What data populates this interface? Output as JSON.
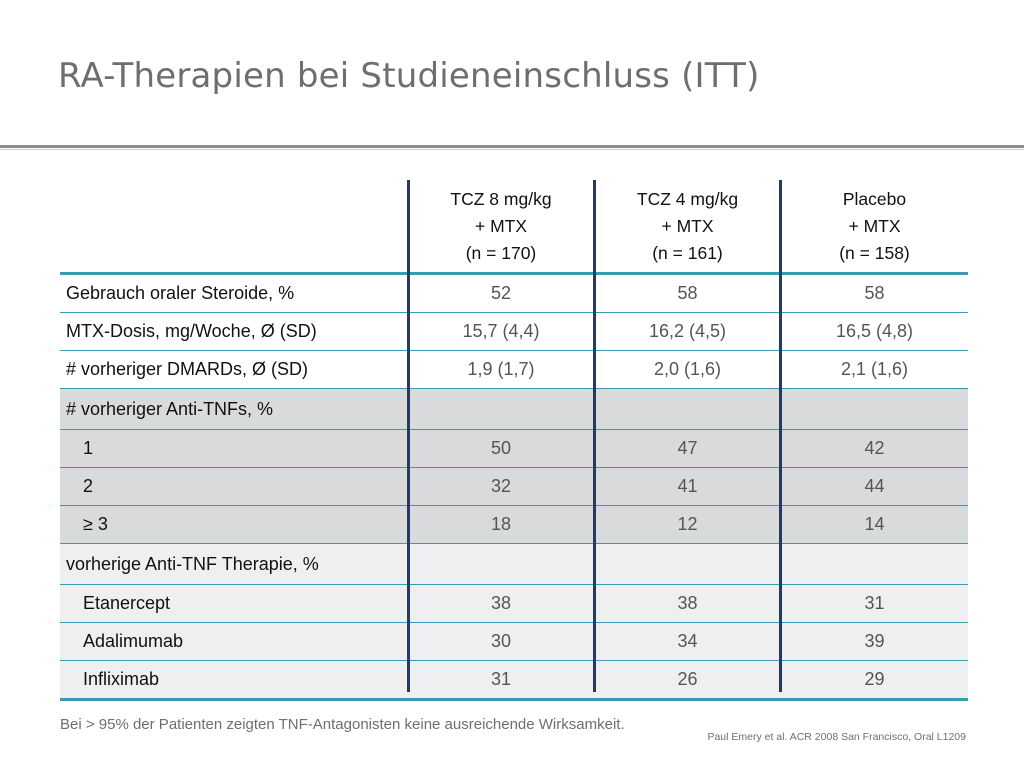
{
  "title": "RA-Therapien bei Studieneinschluss (ITT)",
  "columns": [
    {
      "line1": "TCZ 8 mg/kg",
      "line2": "+ MTX",
      "line3": "(n = 170)"
    },
    {
      "line1": "TCZ 4 mg/kg",
      "line2": "+ MTX",
      "line3": "(n = 161)"
    },
    {
      "line1": "Placebo",
      "line2": "+ MTX",
      "line3": "(n = 158)"
    }
  ],
  "rows": [
    {
      "label": "Gebrauch oraler Steroide, %",
      "v": [
        "52",
        "58",
        "58"
      ]
    },
    {
      "label": "MTX-Dosis, mg/Woche, Ø (SD)",
      "v": [
        "15,7 (4,4)",
        "16,2 (4,5)",
        "16,5 (4,8)"
      ]
    },
    {
      "label": "# vorheriger DMARDs, Ø (SD)",
      "v": [
        "1,9 (1,7)",
        "2,0 (1,6)",
        "2,1 (1,6)"
      ]
    },
    {
      "label": "# vorheriger Anti-TNFs, %",
      "v": [
        "",
        "",
        ""
      ]
    },
    {
      "label": "1",
      "v": [
        "50",
        "47",
        "42"
      ]
    },
    {
      "label": "2",
      "v": [
        "32",
        "41",
        "44"
      ]
    },
    {
      "label": "≥ 3",
      "v": [
        "18",
        "12",
        "14"
      ]
    },
    {
      "label": "vorherige Anti-TNF Therapie, %",
      "v": [
        "",
        "",
        ""
      ]
    },
    {
      "label": "Etanercept",
      "v": [
        "38",
        "38",
        "31"
      ]
    },
    {
      "label": "Adalimumab",
      "v": [
        "30",
        "34",
        "39"
      ]
    },
    {
      "label": "Infliximab",
      "v": [
        "31",
        "26",
        "29"
      ]
    }
  ],
  "footnote": "Bei > 95% der Patienten zeigten TNF-Antagonisten keine ausreichende Wirksamkeit.",
  "source": "Paul Emery et al. ACR 2008 San Francisco, Oral L1209",
  "colors": {
    "accent_line": "#3a99b3",
    "divider": "#1f3a6b",
    "shade_dark": "#d9dadb",
    "shade_light": "#eeeff0"
  }
}
